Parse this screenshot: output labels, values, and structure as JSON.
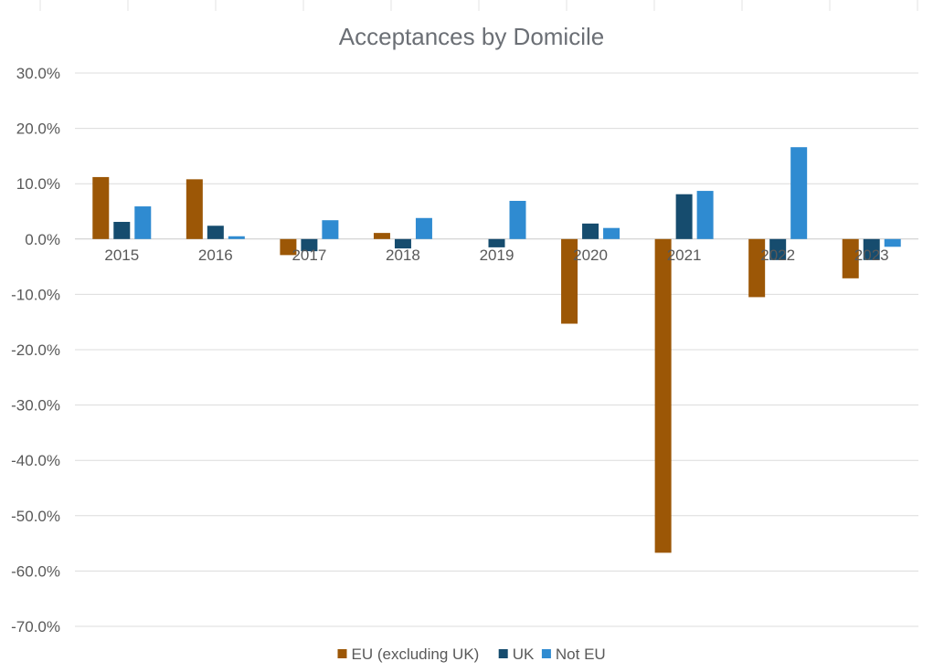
{
  "chart_data": {
    "type": "bar",
    "title": "Acceptances by Domicile",
    "xlabel": "",
    "ylabel": "",
    "categories": [
      "2015",
      "2016",
      "2017",
      "2018",
      "2019",
      "2020",
      "2021",
      "2022",
      "2023"
    ],
    "series": [
      {
        "name": "EU (excluding UK)",
        "color": "#9c5706",
        "values": [
          11.2,
          10.8,
          -2.9,
          1.1,
          0.0,
          -15.3,
          -56.7,
          -10.5,
          -7.1
        ]
      },
      {
        "name": "UK",
        "color": "#164c6e",
        "values": [
          3.1,
          2.4,
          -2.2,
          -1.7,
          -1.5,
          2.8,
          8.1,
          -3.8,
          -3.8
        ]
      },
      {
        "name": "Not EU",
        "color": "#2f8bd1",
        "values": [
          5.9,
          0.5,
          3.4,
          3.8,
          6.9,
          2.0,
          8.7,
          16.6,
          -1.4
        ]
      }
    ],
    "ylim": [
      -70,
      30
    ],
    "yticks": [
      "30.0%",
      "20.0%",
      "10.0%",
      "0.0%",
      "-10.0%",
      "-20.0%",
      "-30.0%",
      "-40.0%",
      "-50.0%",
      "-60.0%",
      "-70.0%"
    ],
    "grid": true,
    "legend_position": "bottom"
  }
}
